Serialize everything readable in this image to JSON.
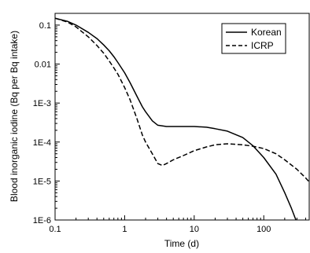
{
  "chart_data": {
    "type": "line",
    "xlabel": "Time (d)",
    "ylabel": "Blood inorganic iodine (Bq per Bq intake)",
    "xscale": "log",
    "yscale": "log",
    "xlim": [
      0.1,
      450
    ],
    "ylim": [
      1e-06,
      0.2
    ],
    "x_ticks": [
      {
        "value": 0.1,
        "label": "0.1"
      },
      {
        "value": 1,
        "label": "1"
      },
      {
        "value": 10,
        "label": "10"
      },
      {
        "value": 100,
        "label": "100"
      }
    ],
    "y_ticks": [
      {
        "value": 1e-06,
        "label": "1E-6"
      },
      {
        "value": 1e-05,
        "label": "1E-5"
      },
      {
        "value": 0.0001,
        "label": "1E-4"
      },
      {
        "value": 0.001,
        "label": "1E-3"
      },
      {
        "value": 0.01,
        "label": "0.01"
      },
      {
        "value": 0.1,
        "label": "0.1"
      }
    ],
    "legend_position": "top-right",
    "series": [
      {
        "name": "Korean",
        "style": "solid",
        "color": "#000000",
        "points": [
          [
            0.1,
            0.15
          ],
          [
            0.15,
            0.125
          ],
          [
            0.2,
            0.1
          ],
          [
            0.3,
            0.065
          ],
          [
            0.4,
            0.045
          ],
          [
            0.5,
            0.031
          ],
          [
            0.6,
            0.022
          ],
          [
            0.7,
            0.0155
          ],
          [
            0.8,
            0.011
          ],
          [
            1.0,
            0.006
          ],
          [
            1.2,
            0.0033
          ],
          [
            1.5,
            0.0015
          ],
          [
            1.8,
            0.0008
          ],
          [
            2.0,
            0.0006
          ],
          [
            2.5,
            0.00035
          ],
          [
            3.0,
            0.00027
          ],
          [
            4.0,
            0.00025
          ],
          [
            6.0,
            0.00025
          ],
          [
            10,
            0.00025
          ],
          [
            15,
            0.00024
          ],
          [
            20,
            0.00022
          ],
          [
            30,
            0.00019
          ],
          [
            50,
            0.00013
          ],
          [
            70,
            8e-05
          ],
          [
            100,
            4e-05
          ],
          [
            150,
            1.5e-05
          ],
          [
            200,
            5e-06
          ],
          [
            250,
            2e-06
          ],
          [
            290,
            1e-06
          ]
        ]
      },
      {
        "name": "ICRP",
        "style": "dashed",
        "color": "#000000",
        "points": [
          [
            0.1,
            0.15
          ],
          [
            0.15,
            0.12
          ],
          [
            0.2,
            0.09
          ],
          [
            0.3,
            0.05
          ],
          [
            0.4,
            0.03
          ],
          [
            0.5,
            0.019
          ],
          [
            0.6,
            0.012
          ],
          [
            0.7,
            0.008
          ],
          [
            0.8,
            0.0055
          ],
          [
            1.0,
            0.0025
          ],
          [
            1.2,
            0.0012
          ],
          [
            1.5,
            0.0004
          ],
          [
            1.8,
            0.00015
          ],
          [
            2.0,
            0.0001
          ],
          [
            2.5,
            5e-05
          ],
          [
            3.0,
            2.8e-05
          ],
          [
            3.5,
            2.5e-05
          ],
          [
            4.0,
            2.8e-05
          ],
          [
            5.0,
            3.5e-05
          ],
          [
            7.0,
            4.5e-05
          ],
          [
            10,
            6e-05
          ],
          [
            15,
            7.5e-05
          ],
          [
            20,
            8.5e-05
          ],
          [
            30,
            9e-05
          ],
          [
            50,
            8.5e-05
          ],
          [
            70,
            7.8e-05
          ],
          [
            100,
            6.8e-05
          ],
          [
            150,
            5e-05
          ],
          [
            200,
            3.5e-05
          ],
          [
            300,
            2e-05
          ],
          [
            400,
            1.2e-05
          ],
          [
            450,
            9.5e-06
          ]
        ]
      }
    ]
  }
}
